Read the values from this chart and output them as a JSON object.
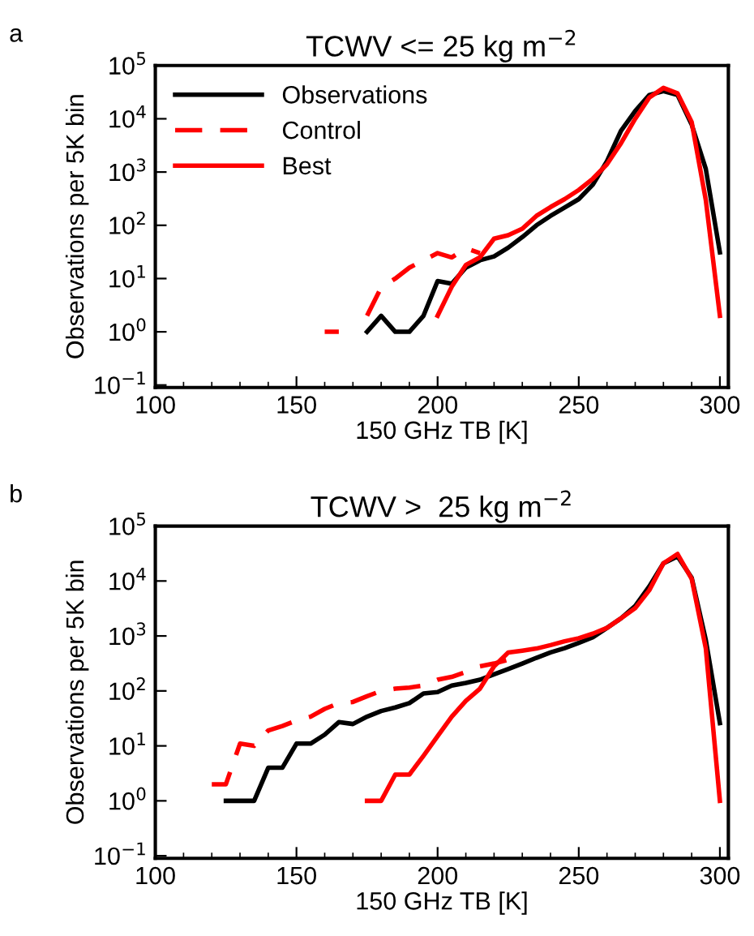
{
  "chart_data": [
    {
      "type": "line",
      "title": "TCWV <= 25 kg m$^{−2}$",
      "xlabel": "150 GHz TB [K]",
      "ylabel": "Observations per 5K bin",
      "annotations": [
        "a"
      ],
      "log": "y",
      "legend": "top left",
      "grid": false,
      "xlim": [
        100,
        303
      ],
      "xticks": [
        100,
        150,
        200,
        250,
        300
      ],
      "ylim": [
        0.09,
        100000
      ],
      "yticks": [
        {
          "value": 0.1,
          "label": "10$^{−1}$"
        },
        {
          "value": 1,
          "label": "10$^{0}$"
        },
        {
          "value": 10,
          "label": "10$^{1}$"
        },
        {
          "value": 100,
          "label": "10$^{2}$"
        },
        {
          "value": 1000,
          "label": "10$^{3}$"
        },
        {
          "value": 10000,
          "label": "10$^{4}$"
        },
        {
          "value": 100000,
          "label": "10$^{5}$"
        }
      ],
      "series": [
        {
          "name": "Observations",
          "color": "#000000",
          "line_style": "solid",
          "x": [
            175,
            180,
            185,
            190,
            195,
            200,
            205,
            210,
            215,
            220,
            225,
            230,
            235,
            240,
            245,
            250,
            255,
            260,
            265,
            270,
            275,
            280,
            285,
            290,
            295,
            300
          ],
          "values": [
            1,
            2,
            1,
            1,
            2,
            9,
            8,
            16,
            22,
            26,
            38,
            60,
            100,
            150,
            215,
            310,
            580,
            1600,
            6000,
            14000,
            28000,
            33000,
            28000,
            7800,
            1150,
            31
          ]
        },
        {
          "name": "Control",
          "color": "#ff0000",
          "line_style": "dashed",
          "x": [
            160,
            165,
            170,
            175,
            180,
            185,
            190,
            195,
            200,
            205,
            210,
            215
          ],
          "values": [
            1,
            1,
            null,
            2,
            6.8,
            10,
            16,
            22,
            30,
            25,
            37,
            30
          ]
        },
        {
          "name": "Best",
          "color": "#ff0000",
          "line_style": "solid",
          "x": [
            200,
            205,
            210,
            215,
            220,
            225,
            230,
            235,
            240,
            245,
            250,
            255,
            260,
            265,
            270,
            275,
            280,
            285,
            290,
            295,
            300
          ],
          "values": [
            2,
            7,
            18,
            25,
            56,
            65,
            86,
            150,
            220,
            310,
            460,
            750,
            1400,
            3500,
            10000,
            25000,
            38000,
            30000,
            8700,
            300,
            2
          ]
        }
      ]
    },
    {
      "type": "line",
      "title": "TCWV >  25 kg m$^{−2}$",
      "xlabel": "150 GHz TB [K]",
      "ylabel": "Observations per 5K bin",
      "annotations": [
        "b"
      ],
      "log": "y",
      "legend": false,
      "grid": false,
      "xlim": [
        100,
        303
      ],
      "xticks": [
        100,
        150,
        200,
        250,
        300
      ],
      "ylim": [
        0.09,
        100000
      ],
      "yticks": [
        {
          "value": 0.1,
          "label": "10$^{−1}$"
        },
        {
          "value": 1,
          "label": "10$^{0}$"
        },
        {
          "value": 10,
          "label": "10$^{1}$"
        },
        {
          "value": 100,
          "label": "10$^{2}$"
        },
        {
          "value": 1000,
          "label": "10$^{3}$"
        },
        {
          "value": 10000,
          "label": "10$^{4}$"
        },
        {
          "value": 100000,
          "label": "10$^{5}$"
        }
      ],
      "series": [
        {
          "color": "#000000",
          "line_style": "solid",
          "x": [
            125,
            130,
            135,
            140,
            145,
            150,
            155,
            160,
            165,
            170,
            175,
            180,
            185,
            190,
            195,
            200,
            205,
            210,
            215,
            220,
            225,
            230,
            235,
            240,
            245,
            250,
            255,
            260,
            265,
            270,
            275,
            280,
            285,
            290,
            295,
            300
          ],
          "values": [
            1,
            1,
            1,
            4,
            4,
            11,
            11,
            16,
            27,
            25,
            34,
            43,
            50,
            60,
            90,
            95,
            125,
            140,
            160,
            200,
            250,
            315,
            400,
            500,
            600,
            750,
            950,
            1400,
            2100,
            3500,
            8000,
            21000,
            28000,
            11500,
            850,
            26
          ]
        },
        {
          "color": "#ff0000",
          "line_style": "dashed",
          "x": [
            120,
            125,
            130,
            135,
            140,
            145,
            150,
            155,
            160,
            165,
            170,
            175,
            180,
            185,
            190,
            195,
            200,
            205,
            210,
            215,
            220,
            225,
            230
          ],
          "values": [
            2,
            2,
            11,
            10,
            19,
            23,
            29,
            34,
            47,
            60,
            63,
            80,
            100,
            110,
            115,
            125,
            160,
            180,
            220,
            280,
            315,
            370,
            430
          ]
        },
        {
          "color": "#ff0000",
          "line_style": "solid",
          "x": [
            175,
            180,
            185,
            190,
            195,
            200,
            205,
            210,
            215,
            220,
            225,
            230,
            235,
            240,
            245,
            250,
            255,
            260,
            265,
            270,
            275,
            280,
            285,
            290,
            295,
            300
          ],
          "values": [
            1,
            1,
            3,
            3,
            6.6,
            15,
            34,
            66,
            110,
            280,
            500,
            540,
            590,
            680,
            800,
            910,
            1100,
            1400,
            2100,
            3200,
            6800,
            21000,
            31000,
            11000,
            600,
            1
          ]
        }
      ]
    }
  ]
}
